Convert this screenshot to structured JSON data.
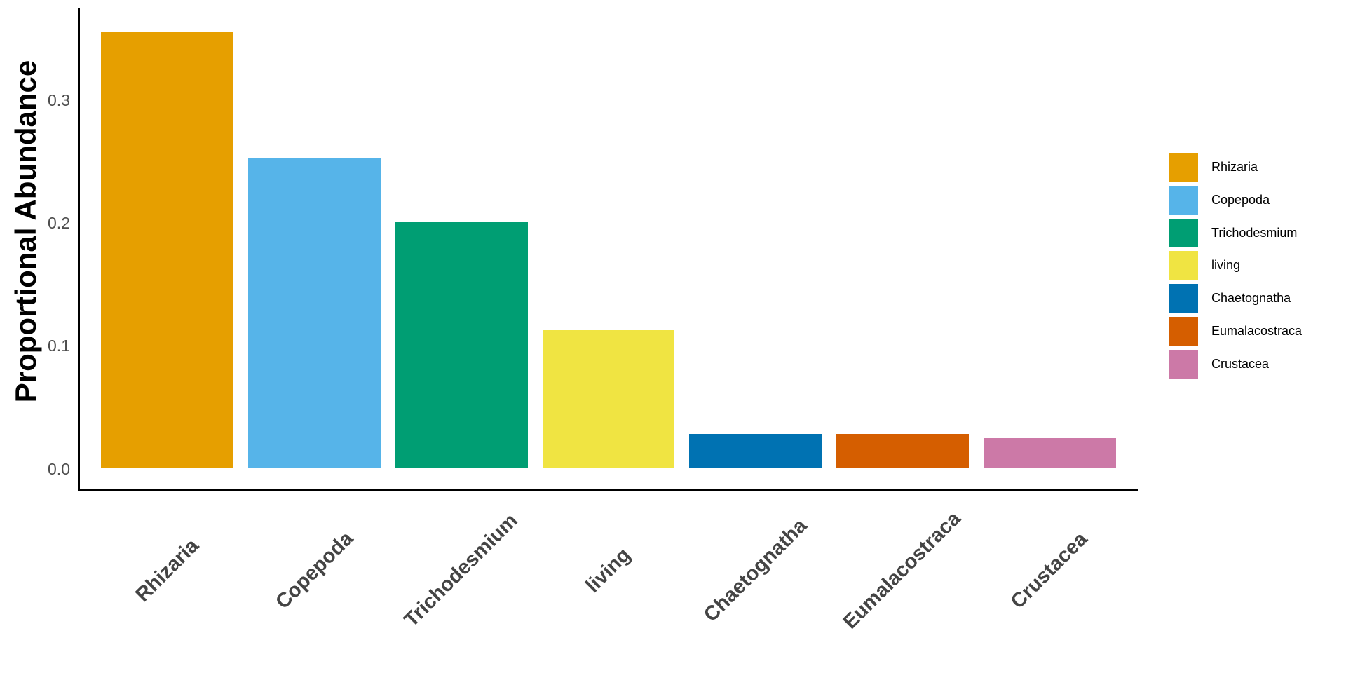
{
  "chart_data": {
    "type": "bar",
    "title": "",
    "xlabel": "",
    "ylabel": "Proportional Abundance",
    "categories": [
      "Rhizaria",
      "Copepoda",
      "Trichodesmium",
      "living",
      "Chaetognatha",
      "Eumalacostraca",
      "Crustacea"
    ],
    "values": [
      0.356,
      0.253,
      0.201,
      0.113,
      0.028,
      0.028,
      0.025
    ],
    "bar_colors": [
      "#E69F00",
      "#56B4E9",
      "#009E73",
      "#F0E442",
      "#0072B2",
      "#D55E00",
      "#CC79A7"
    ],
    "y_ticks": [
      {
        "label": "0.0",
        "value": 0.0
      },
      {
        "label": "0.1",
        "value": 0.1
      },
      {
        "label": "0.2",
        "value": 0.2
      },
      {
        "label": "0.3",
        "value": 0.3
      }
    ],
    "ylim": [
      0,
      0.375
    ],
    "grid": false,
    "background": "#FFFFFF",
    "legend": {
      "position": "right",
      "items": [
        {
          "label": "Rhizaria",
          "color": "#E69F00"
        },
        {
          "label": "Copepoda",
          "color": "#56B4E9"
        },
        {
          "label": "Trichodesmium",
          "color": "#009E73"
        },
        {
          "label": "living",
          "color": "#F0E442"
        },
        {
          "label": "Chaetognatha",
          "color": "#0072B2"
        },
        {
          "label": "Eumalacostraca",
          "color": "#D55E00"
        },
        {
          "label": "Crustacea",
          "color": "#CC79A7"
        }
      ]
    },
    "style": {
      "axis_line_color": "#000000",
      "y_tick_text_color": "#4D4D4D",
      "x_tick_text_color": "#444444",
      "axis_title_color": "#000000",
      "legend_text_color": "#000000"
    }
  }
}
